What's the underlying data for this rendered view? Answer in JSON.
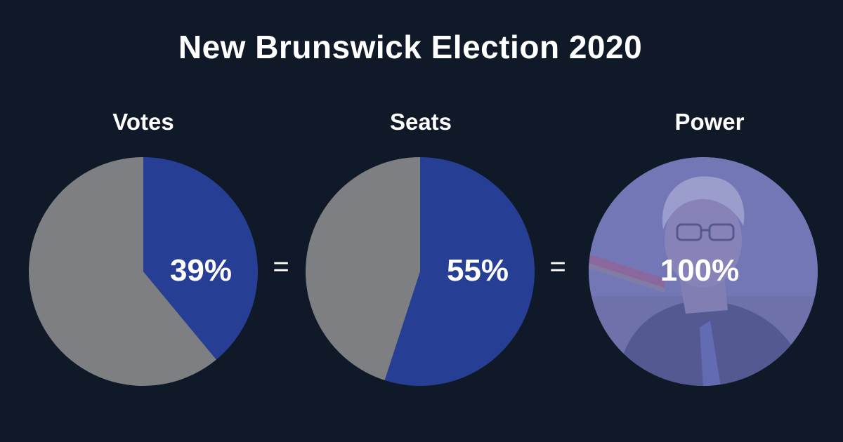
{
  "title": "New Brunswick Election 2020",
  "equals_symbol": "=",
  "colors": {
    "background": "#0f1928",
    "party": "#263f94",
    "others": "#7e7f83",
    "power_fill": "#6c6fb6"
  },
  "chart_data": [
    {
      "type": "pie",
      "title": "Votes",
      "slices": [
        {
          "value": 39,
          "color": "#263f94"
        },
        {
          "value": 61,
          "color": "#7e7f83"
        }
      ],
      "data_label": "39%"
    },
    {
      "type": "pie",
      "title": "Seats",
      "slices": [
        {
          "value": 55,
          "color": "#263f94"
        },
        {
          "value": 45,
          "color": "#7e7f83"
        }
      ],
      "data_label": "55%"
    },
    {
      "type": "pie",
      "title": "Power",
      "slices": [
        {
          "value": 100,
          "color": "#6c6fb6"
        }
      ],
      "data_label": "100%",
      "background_image": "photo of older man with glasses and grey hair, tinted purple"
    }
  ]
}
